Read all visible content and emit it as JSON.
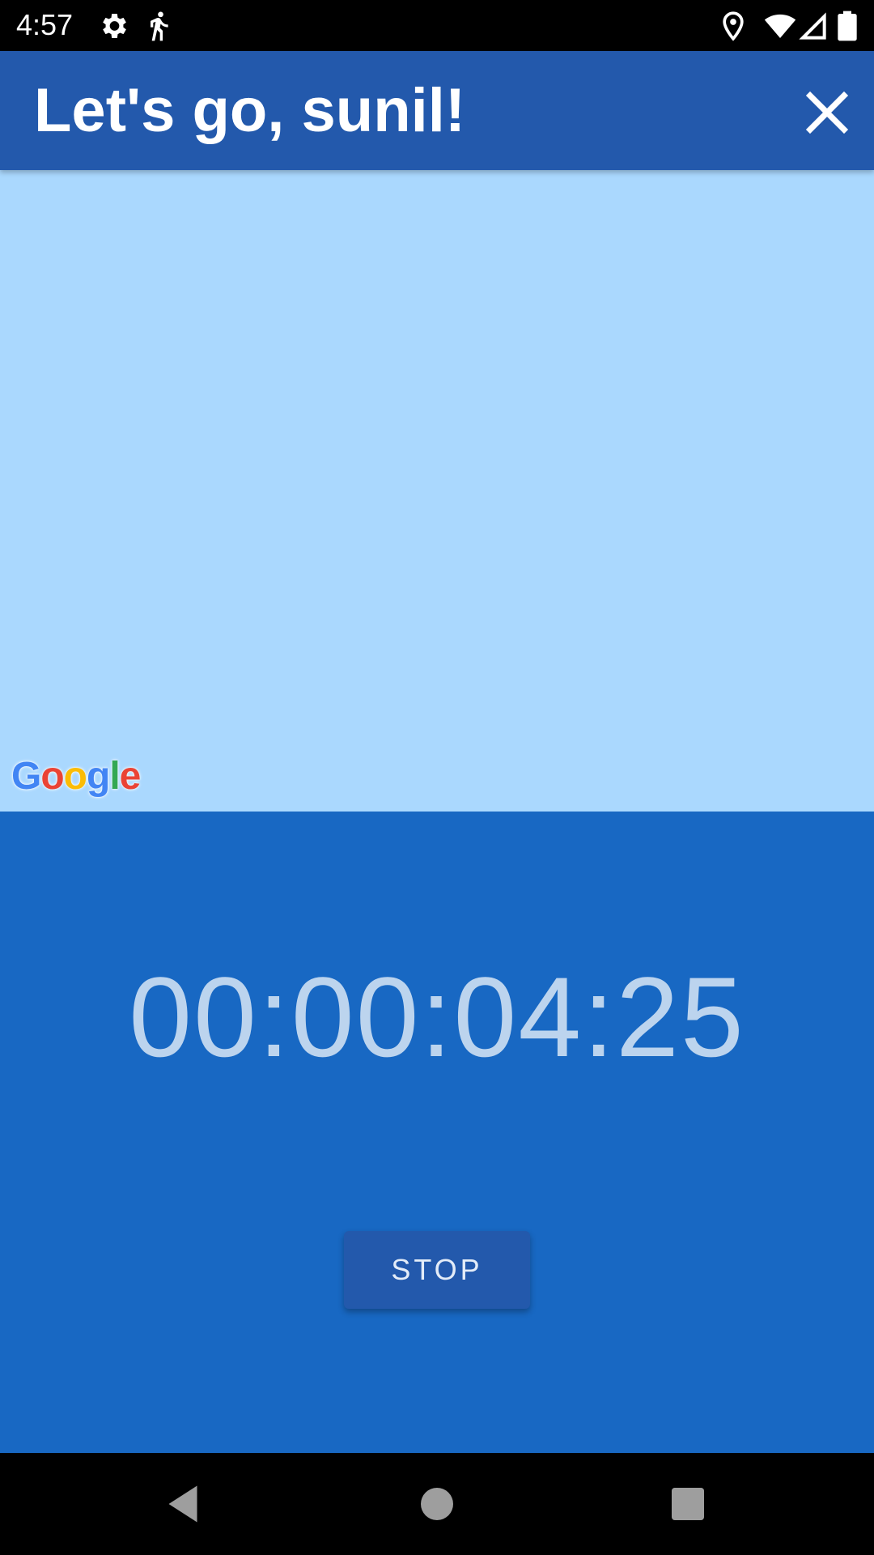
{
  "status_bar": {
    "time": "4:57",
    "icons": [
      "gear-icon",
      "running-person-icon",
      "location-pin-icon",
      "wifi-icon",
      "cellular-signal-icon",
      "battery-icon"
    ]
  },
  "app_bar": {
    "title": "Let's go, sunil!",
    "close_icon": "close-icon"
  },
  "map": {
    "background_color": "#AAD8FE",
    "attribution_letters": [
      "G",
      "o",
      "o",
      "g",
      "l",
      "e"
    ]
  },
  "timer": {
    "elapsed": "00:00:04:25",
    "stop_label": "STOP"
  },
  "colors": {
    "app_bar": "#2359AC",
    "timer_panel": "#1868C3",
    "timer_text": "#BCD4EE"
  },
  "nav_bar": {
    "icons": [
      "back-icon",
      "home-icon",
      "recents-icon"
    ]
  }
}
